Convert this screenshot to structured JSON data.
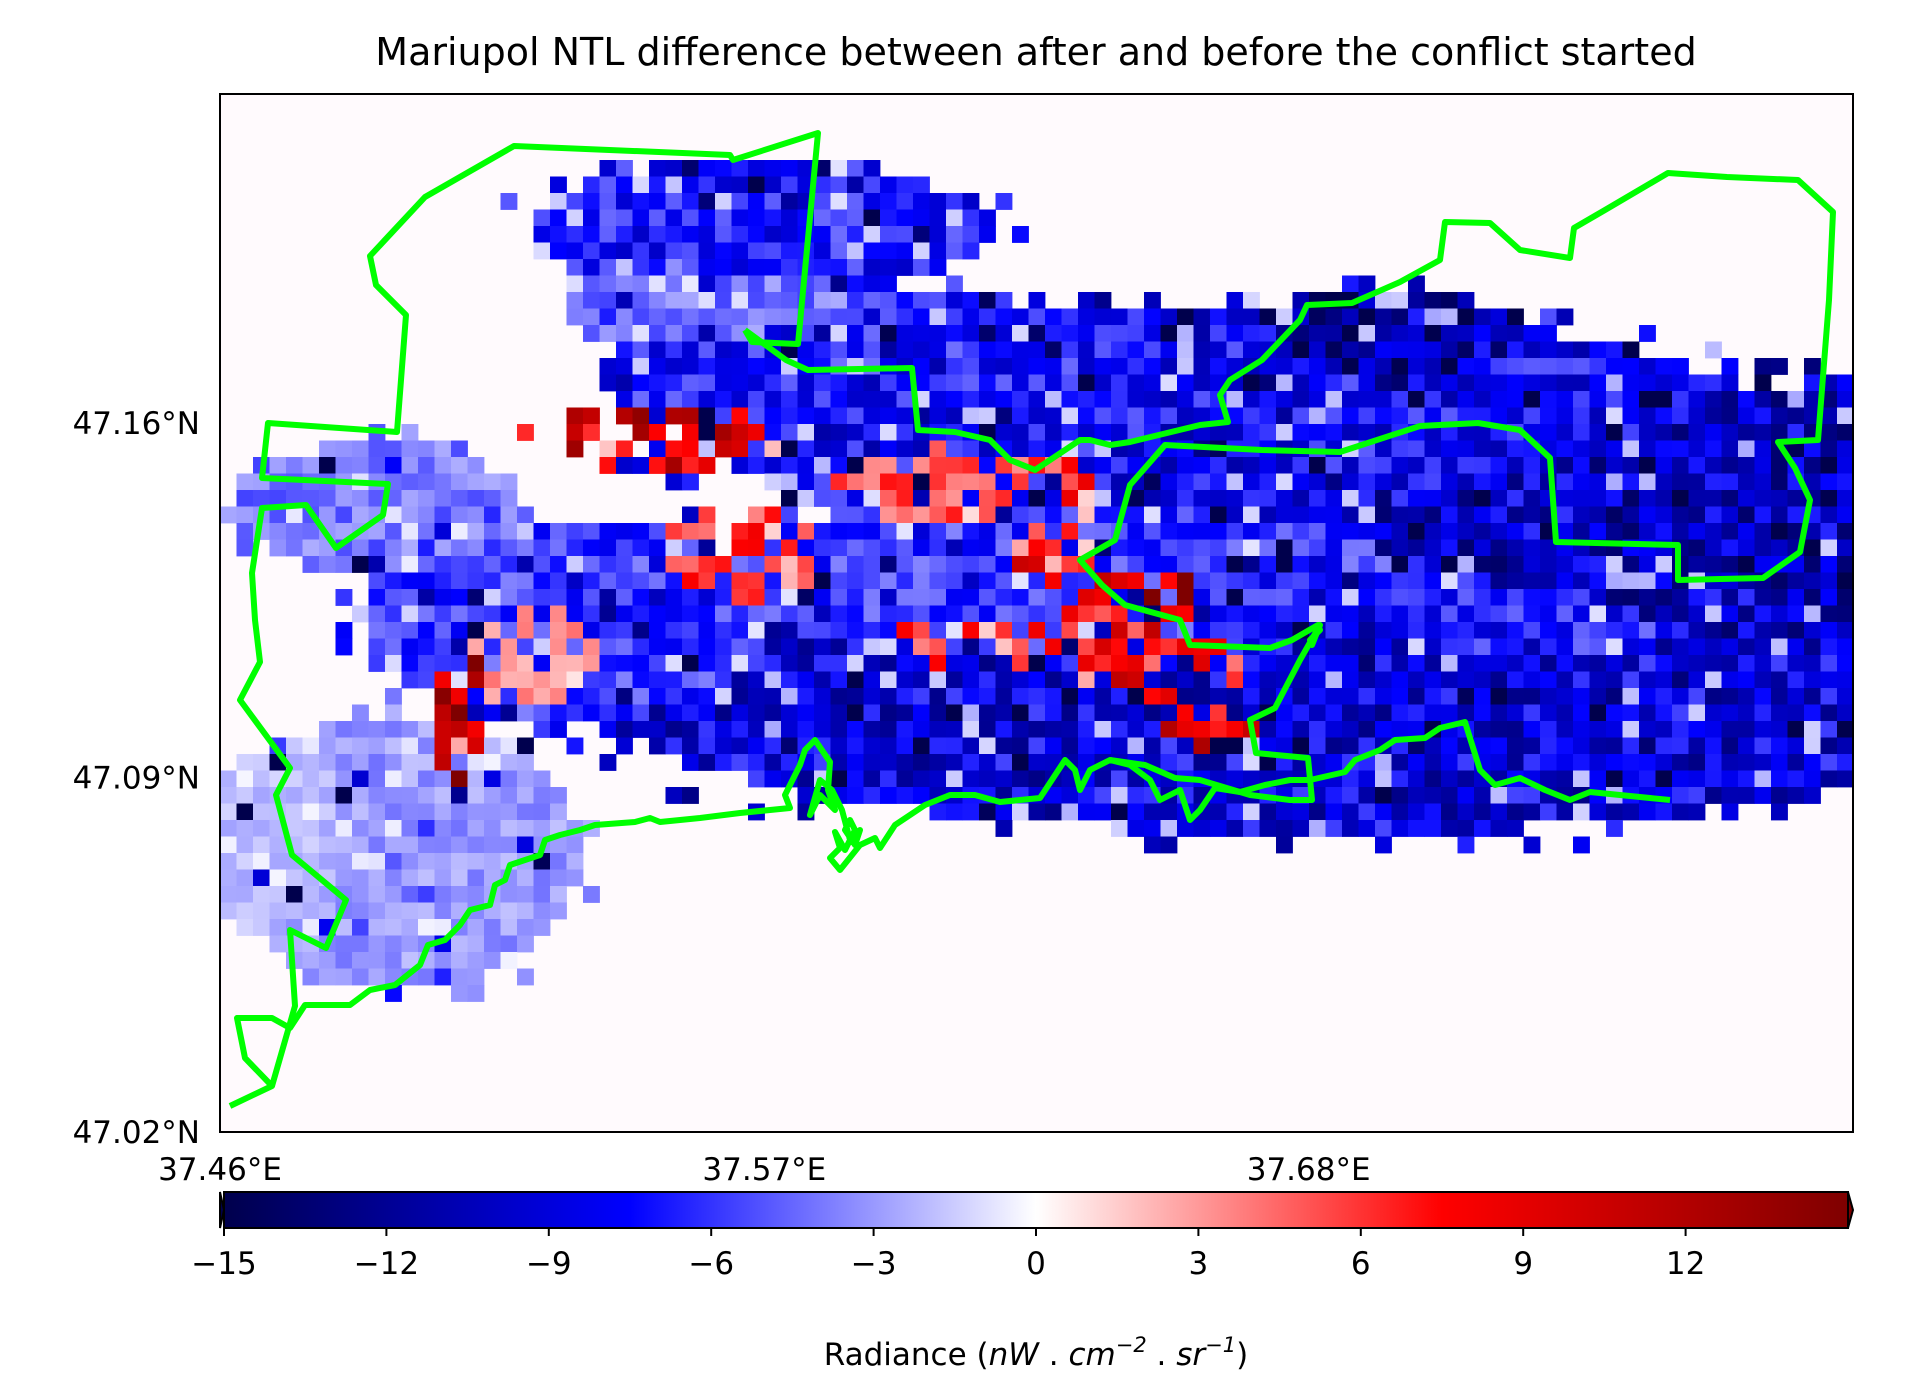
{
  "chart_data": {
    "type": "heatmap",
    "title": "Mariupol NTL difference between after and before the conflict started",
    "colorbar": {
      "label": "Radiance ($nW$ . $cm^{-2}$ . $sr^{-1}$)",
      "label_parts": [
        "Radiance (",
        "nW",
        " . ",
        "cm",
        "−2",
        " . ",
        "sr",
        "−1",
        ")"
      ],
      "range": [
        -15,
        15
      ],
      "ticks": [
        -15,
        -12,
        -9,
        -6,
        -3,
        0,
        3,
        6,
        9,
        12
      ],
      "tick_labels": [
        "−15",
        "−12",
        "−9",
        "−6",
        "−3",
        "0",
        "3",
        "6",
        "9",
        "12"
      ],
      "colormap": "seismic",
      "colors": [
        "#00004c",
        "#0000ff",
        "#ffffff",
        "#ff0000",
        "#7f0000"
      ],
      "extend": "both"
    },
    "x_ticks": [
      {
        "value": 37.46,
        "label": "37.46°E"
      },
      {
        "value": 37.57,
        "label": "37.57°E"
      },
      {
        "value": 37.68,
        "label": "37.68°E"
      }
    ],
    "y_ticks": [
      {
        "value": 47.02,
        "label": "47.02°N"
      },
      {
        "value": 47.09,
        "label": "47.09°N"
      },
      {
        "value": 47.16,
        "label": "47.16°N"
      }
    ],
    "xlim": [
      37.46,
      37.79
    ],
    "ylim": [
      47.02,
      47.225
    ],
    "grid": false,
    "boundary_color": "#00ff00",
    "background_color": "#fffafd",
    "legend": "colorbar-bottom"
  }
}
